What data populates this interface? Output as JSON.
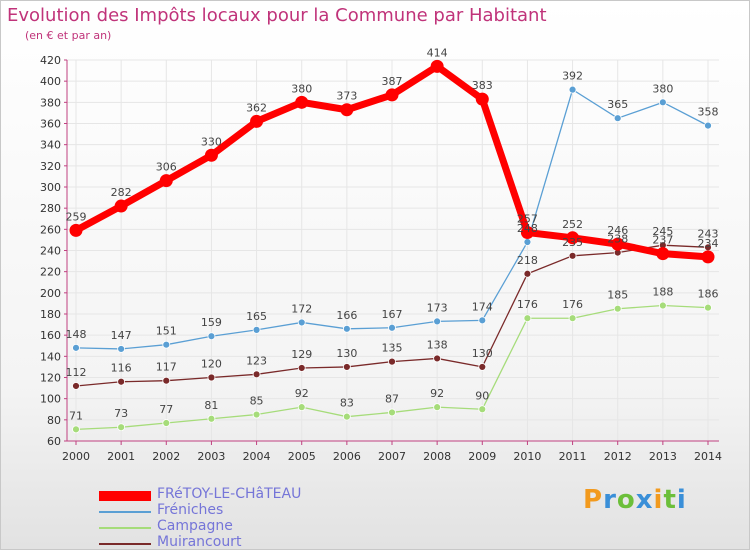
{
  "chart_data": {
    "type": "line",
    "title": "Evolution des Impôts locaux pour la Commune par Habitant",
    "subtitle": "(en € et par an)",
    "xlabel": "",
    "ylabel": "",
    "ylim": [
      60,
      420
    ],
    "ytick_step": 20,
    "grid": true,
    "legend_position": "bottom-left",
    "x": [
      2000,
      2001,
      2002,
      2003,
      2004,
      2005,
      2006,
      2007,
      2008,
      2009,
      2010,
      2011,
      2012,
      2013,
      2014
    ],
    "series": [
      {
        "name": "FRéTOY-LE-CHâTEAU",
        "color": "#ff0000",
        "values": [
          259,
          282,
          306,
          330,
          362,
          380,
          373,
          387,
          414,
          383,
          257,
          252,
          246,
          237,
          234
        ],
        "labels": [
          "259",
          "282",
          "306",
          "330",
          "362",
          "380",
          "373",
          "387",
          "414",
          "383",
          "257",
          "252",
          "246",
          "237",
          "234"
        ]
      },
      {
        "name": "Fréniches",
        "color": "#5a9fd4",
        "values": [
          148,
          147,
          151,
          159,
          165,
          172,
          166,
          167,
          173,
          174,
          248,
          392,
          365,
          380,
          358
        ],
        "labels": [
          "148",
          "147",
          "151",
          "159",
          "165",
          "172",
          "166",
          "167",
          "173",
          "174",
          "248",
          "392",
          "365",
          "380",
          "358"
        ]
      },
      {
        "name": "Campagne",
        "color": "#a6dc7a",
        "values": [
          71,
          73,
          77,
          81,
          85,
          92,
          83,
          87,
          92,
          90,
          176,
          176,
          185,
          188,
          186
        ],
        "labels": [
          "71",
          "73",
          "77",
          "81",
          "85",
          "92",
          "83",
          "87",
          "92",
          "90",
          "176",
          "176",
          "185",
          "188",
          "186"
        ]
      },
      {
        "name": "Muirancourt",
        "color": "#7a2a2a",
        "values": [
          112,
          116,
          117,
          120,
          123,
          129,
          130,
          135,
          138,
          130,
          218,
          235,
          238,
          245,
          243
        ],
        "labels": [
          "112",
          "116",
          "117",
          "120",
          "123",
          "129",
          "130",
          "135",
          "138",
          "130",
          "218",
          "235",
          "238",
          "245",
          "243"
        ]
      }
    ]
  },
  "brand": {
    "letters": [
      "P",
      "r",
      "o",
      "x",
      "i",
      "t",
      "i"
    ],
    "colors": [
      "#f29a1e",
      "#3a8fd8",
      "#6cbf3a",
      "#3a8fd8",
      "#f29a1e",
      "#6cbf3a",
      "#3a8fd8"
    ]
  }
}
